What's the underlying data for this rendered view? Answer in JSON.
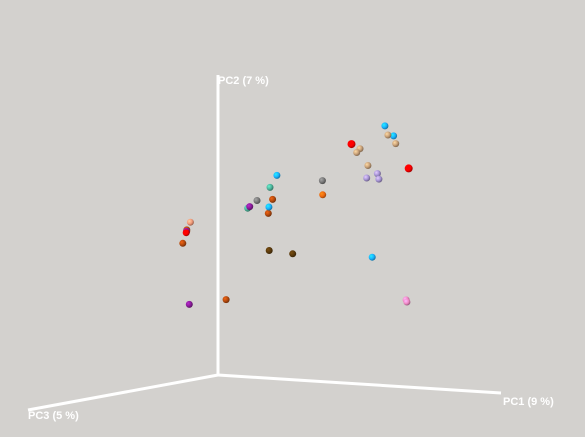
{
  "chart_data": {
    "type": "scatter",
    "subtype": "3d-pca",
    "title": "",
    "axes": [
      {
        "id": "pc1",
        "label": "PC1 (9 %)"
      },
      {
        "id": "pc2",
        "label": "PC2 (7 %)"
      },
      {
        "id": "pc3",
        "label": "PC3 (5 %)"
      }
    ],
    "grid": false,
    "legend": "none",
    "colors": {
      "red": "#ff0000",
      "blue": "#1ab2ff",
      "tan": "#c9a27a",
      "lavender": "#a896d6",
      "gray": "#7a7a7a",
      "orange": "#ee6a10",
      "teal": "#4db39a",
      "purple": "#8a1c9a",
      "brown": "#5a3a0c",
      "rust": "#b44a0e",
      "salmon": "#f29a7a",
      "pink": "#f08ac6"
    },
    "points": [
      {
        "x": 0.557,
        "y": 0.818,
        "z": 0.127,
        "color": "red"
      },
      {
        "x": 0.763,
        "y": 0.75,
        "z": 0.133,
        "color": "red"
      },
      {
        "x": 0.698,
        "y": 0.891,
        "z": 0.161,
        "color": "blue"
      },
      {
        "x": 0.726,
        "y": 0.859,
        "z": 0.157,
        "color": "blue"
      },
      {
        "x": 0.607,
        "y": 0.809,
        "z": 0.157,
        "color": "tan"
      },
      {
        "x": 0.592,
        "y": 0.795,
        "z": 0.152,
        "color": "tan"
      },
      {
        "x": 0.703,
        "y": 0.86,
        "z": 0.153,
        "color": "tan"
      },
      {
        "x": 0.752,
        "y": 0.838,
        "z": 0.185,
        "color": "tan"
      },
      {
        "x": 0.662,
        "y": 0.761,
        "z": 0.197,
        "color": "tan"
      },
      {
        "x": 0.648,
        "y": 0.725,
        "z": 0.126,
        "color": "lavender"
      },
      {
        "x": 0.653,
        "y": 0.707,
        "z": 0.126,
        "color": "lavender"
      },
      {
        "x": 0.618,
        "y": 0.71,
        "z": 0.138,
        "color": "lavender"
      },
      {
        "x": 0.463,
        "y": 0.692,
        "z": 0.14,
        "color": "gray"
      },
      {
        "x": 0.486,
        "y": 0.65,
        "z": 0.173,
        "color": "orange"
      },
      {
        "x": 0.372,
        "y": 0.716,
        "z": 0.244,
        "color": "blue"
      },
      {
        "x": 0.349,
        "y": 0.675,
        "z": 0.246,
        "color": "teal"
      },
      {
        "x": 0.36,
        "y": 0.636,
        "z": 0.249,
        "color": "rust"
      },
      {
        "x": 0.301,
        "y": 0.628,
        "z": 0.243,
        "color": "gray"
      },
      {
        "x": 0.279,
        "y": 0.603,
        "z": 0.259,
        "color": "teal"
      },
      {
        "x": 0.33,
        "y": 0.585,
        "z": 0.227,
        "color": "rust"
      },
      {
        "x": 0.365,
        "y": 0.614,
        "z": 0.276,
        "color": "blue"
      },
      {
        "x": 0.304,
        "y": 0.613,
        "z": 0.286,
        "color": "purple"
      },
      {
        "x": 0.651,
        "y": 0.45,
        "z": 0.158,
        "color": "blue"
      },
      {
        "x": 0.297,
        "y": 0.453,
        "z": 0.173,
        "color": "brown"
      },
      {
        "x": 0.38,
        "y": 0.447,
        "z": 0.173,
        "color": "brown"
      },
      {
        "x": 0.204,
        "y": 0.574,
        "z": 0.449,
        "color": "salmon"
      },
      {
        "x": 0.245,
        "y": 0.56,
        "z": 0.529,
        "color": "rust"
      },
      {
        "x": 0.223,
        "y": 0.55,
        "z": 0.497,
        "color": "orange"
      },
      {
        "x": 0.211,
        "y": 0.548,
        "z": 0.48,
        "color": "purple"
      },
      {
        "x": 0.228,
        "y": 0.547,
        "z": 0.507,
        "color": "red"
      },
      {
        "x": 0.194,
        "y": 0.506,
        "z": 0.474,
        "color": "rust"
      },
      {
        "x": 0.707,
        "y": 0.3,
        "z": 0.063,
        "color": "pink"
      },
      {
        "x": 0.752,
        "y": 0.303,
        "z": 0.126,
        "color": "pink"
      },
      {
        "x": 0.065,
        "y": 0.268,
        "z": 0.248,
        "color": "purple"
      },
      {
        "x": 0.114,
        "y": 0.273,
        "z": 0.127,
        "color": "rust"
      }
    ]
  }
}
